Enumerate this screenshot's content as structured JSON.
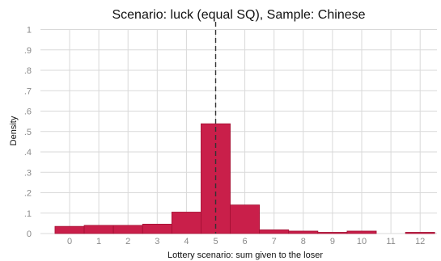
{
  "chart_data": {
    "type": "bar",
    "title": "Scenario: luck (equal SQ), Sample: Chinese",
    "xlabel": "Lottery scenario: sum given to the loser",
    "ylabel": "Density",
    "categories": [
      "0",
      "1",
      "2",
      "3",
      "4",
      "5",
      "6",
      "7",
      "8",
      "9",
      "10",
      "11",
      "12"
    ],
    "values": [
      0.035,
      0.04,
      0.04,
      0.046,
      0.105,
      0.538,
      0.14,
      0.018,
      0.012,
      0.006,
      0.012,
      0.0,
      0.006
    ],
    "ylim": [
      0,
      1
    ],
    "yticks": [
      0,
      0.1,
      0.2,
      0.3,
      0.4,
      0.5,
      0.6,
      0.7,
      0.8,
      0.9,
      1
    ],
    "ytick_labels": [
      "0",
      ".1",
      ".2",
      ".3",
      ".4",
      ".5",
      ".6",
      ".7",
      ".8",
      ".9",
      "1"
    ],
    "reference_line_x": 5,
    "grid": true,
    "bar_color": "#c91f4a"
  }
}
